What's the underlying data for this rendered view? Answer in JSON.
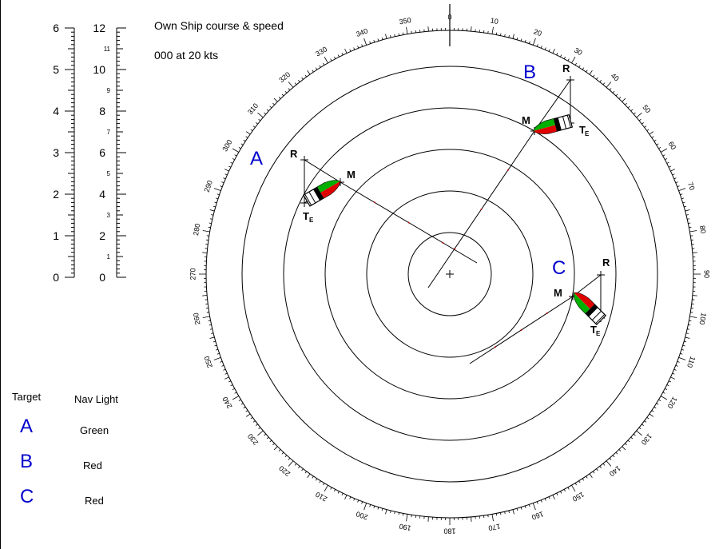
{
  "own_ship": {
    "title": "Own  Ship course & speed",
    "value": "000 at 20 kts"
  },
  "scales": {
    "left_labels": [
      "0",
      "1",
      "2",
      "3",
      "4",
      "5",
      "6"
    ],
    "right_major_labels": [
      "0",
      "2",
      "4",
      "6",
      "8",
      "10",
      "12"
    ],
    "right_minor_labels": [
      "1",
      "3",
      "5",
      "7",
      "9",
      "11"
    ]
  },
  "legend": {
    "target_header": "Target",
    "light_header": "Nav Light",
    "rows": [
      {
        "letter": "A",
        "light": "Green"
      },
      {
        "letter": "B",
        "light": "Red"
      },
      {
        "letter": "C",
        "light": "Red"
      }
    ]
  },
  "plot": {
    "bearing_labels": [
      "0",
      "10",
      "20",
      "30",
      "40",
      "50",
      "60",
      "70",
      "80",
      "90",
      "100",
      "110",
      "120",
      "130",
      "140",
      "150",
      "160",
      "170",
      "180",
      "190",
      "200",
      "210",
      "220",
      "230",
      "240",
      "250",
      "260",
      "270",
      "280",
      "290",
      "300",
      "310",
      "320",
      "330",
      "340",
      "350"
    ],
    "point_labels": {
      "r": "R",
      "m": "M",
      "te_main": "T",
      "te_sub": "E"
    },
    "targets": [
      {
        "name": "A",
        "color": "#0000cc"
      },
      {
        "name": "B",
        "color": "#0000cc"
      },
      {
        "name": "C",
        "color": "#0000cc"
      }
    ],
    "colors": {
      "green_light": "#00b000",
      "red_light": "#e00000",
      "hull": "#000000",
      "label_blue": "#0000cc"
    }
  }
}
